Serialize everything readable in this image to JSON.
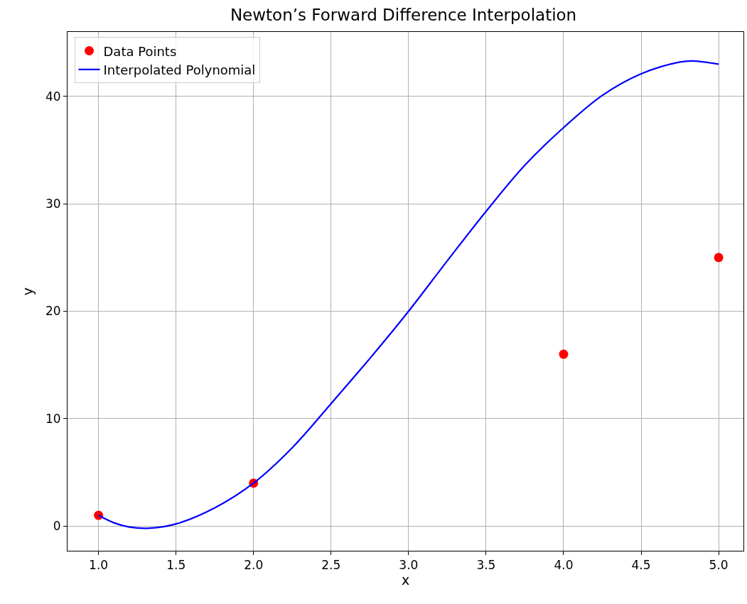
{
  "chart_data": {
    "type": "scatter",
    "title": "Newton’s Forward Difference Interpolation",
    "xlabel": "x",
    "ylabel": "y",
    "series": [
      {
        "name": "Data Points",
        "marker": "circle",
        "color": "#ff0000",
        "x": [
          1,
          2,
          4,
          5
        ],
        "values": [
          1,
          4,
          16,
          25
        ]
      },
      {
        "name": "Interpolated Polynomial",
        "type": "line",
        "marker": "none",
        "line_style": "solid",
        "color": "#0000ff",
        "x": [
          1.0,
          1.1,
          1.2,
          1.33,
          1.5,
          1.75,
          2.0,
          2.25,
          2.5,
          2.75,
          3.0,
          3.25,
          3.5,
          3.75,
          4.0,
          4.25,
          4.5,
          4.75,
          4.83,
          5.0
        ],
        "values": [
          1.0,
          0.3,
          -0.1,
          -0.2,
          0.2,
          1.7,
          4.0,
          7.3,
          11.4,
          15.6,
          20.0,
          24.7,
          29.3,
          33.6,
          37.1,
          40.1,
          42.1,
          43.2,
          43.3,
          43.0
        ]
      }
    ],
    "xlim": [
      0.8,
      5.16
    ],
    "ylim": [
      -2.3,
      46.0
    ],
    "xticks": [
      {
        "value": 1,
        "label": "1.0"
      },
      {
        "value": 1.5,
        "label": "1.5"
      },
      {
        "value": 2,
        "label": "2.0"
      },
      {
        "value": 2.5,
        "label": "2.5"
      },
      {
        "value": 3,
        "label": "3.0"
      },
      {
        "value": 3.5,
        "label": "3.5"
      },
      {
        "value": 4,
        "label": "4.0"
      },
      {
        "value": 4.5,
        "label": "4.5"
      },
      {
        "value": 5,
        "label": "5.0"
      }
    ],
    "yticks": [
      0,
      10,
      20,
      30,
      40
    ],
    "grid": true,
    "legend": "top left"
  }
}
